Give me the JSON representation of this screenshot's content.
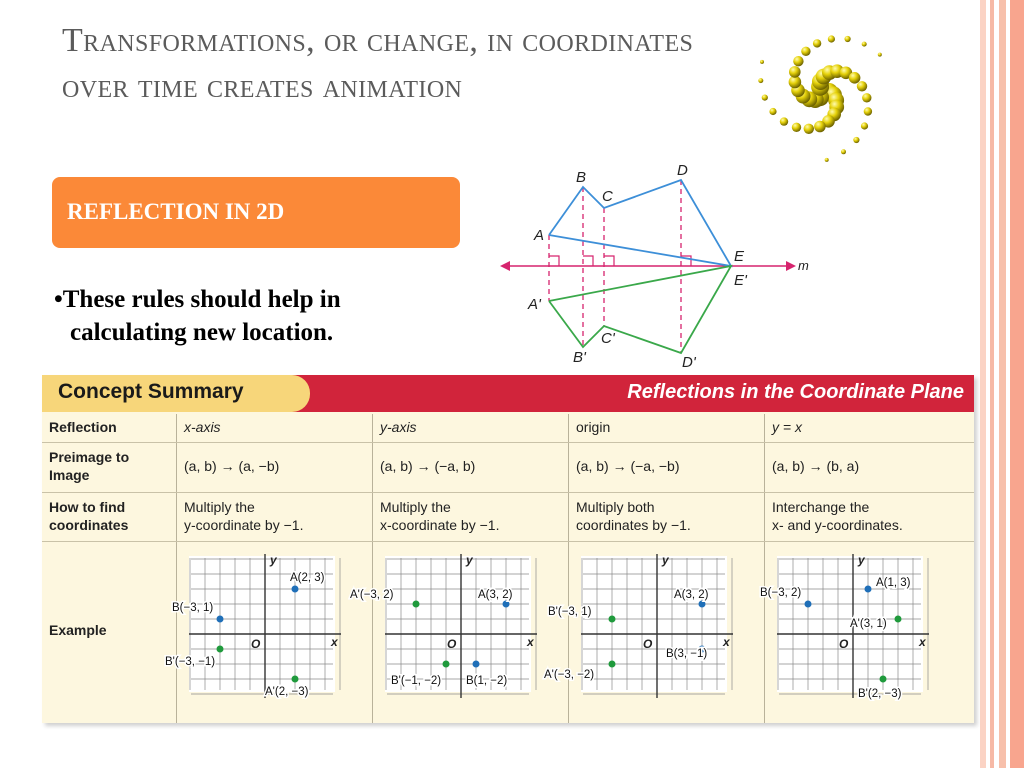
{
  "title": "Transformations, or change, in coordinates over time creates animation",
  "section_label": "REFLECTION IN 2D",
  "bullet": {
    "line1": "•These rules should help in",
    "line2": "calculating new location."
  },
  "figure": {
    "points": [
      "A",
      "B",
      "C",
      "D",
      "E",
      "E'",
      "A'",
      "B'",
      "C'",
      "D'"
    ],
    "line_label": "m"
  },
  "concept_summary": {
    "tab_title": "Concept Summary",
    "right_title": "Reflections in the Coordinate Plane",
    "row_labels": {
      "reflection": "Reflection",
      "preimage_1": "Preimage to",
      "preimage_2": "Image",
      "how_1": "How to find",
      "how_2": "coordinates",
      "example": "Example"
    },
    "columns": [
      {
        "reflection": "x-axis",
        "rule": "(a, b) → (a, −b)",
        "how_1": "Multiply the",
        "how_2": "y-coordinate by −1.",
        "example_labels": [
          "A(2, 3)",
          "B(−3, 1)",
          "B'(−3, −1)",
          "A'(2, −3)"
        ]
      },
      {
        "reflection": "y-axis",
        "rule": "(a, b) → (−a, b)",
        "how_1": "Multiply the",
        "how_2": "x-coordinate by −1.",
        "example_labels": [
          "A'(−3, 2)",
          "A(3, 2)",
          "B'(−1, −2)",
          "B(1, −2)"
        ]
      },
      {
        "reflection": "origin",
        "rule": "(a, b) → (−a, −b)",
        "how_1": "Multiply both",
        "how_2": "coordinates by −1.",
        "example_labels": [
          "B'(−3, 1)",
          "A(3, 2)",
          "A'(−3, −2)",
          "B(3, −1)"
        ]
      },
      {
        "reflection": "y = x",
        "rule": "(a, b) → (b, a)",
        "how_1": "Interchange the",
        "how_2": "x- and y-coordinates.",
        "example_labels": [
          "B(−3, 2)",
          "A(1, 3)",
          "A'(3, 1)",
          "B'(2, −3)"
        ]
      }
    ],
    "axis": {
      "x": "x",
      "y": "y",
      "origin": "O"
    }
  },
  "colors": {
    "accent_orange": "#fb8938",
    "header_red": "#d1243b",
    "tab_yellow": "#f7d67a",
    "preimage_blue": "#1f6fb8",
    "image_green": "#1f9a3c",
    "stripe_pink": "#f6b9a6"
  }
}
